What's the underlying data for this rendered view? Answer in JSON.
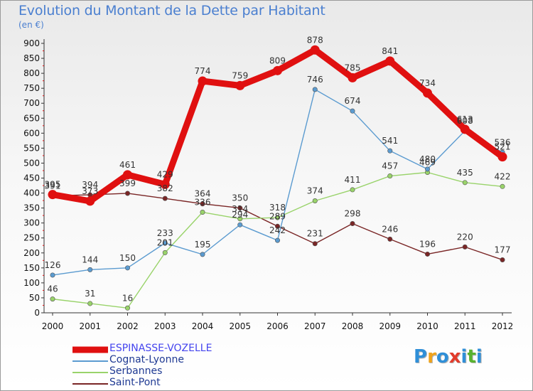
{
  "header": {
    "title": "Evolution du Montant de la Dette par Habitant",
    "subtitle": "(en €)"
  },
  "logo": {
    "letters": [
      "P",
      "r",
      "o",
      "x",
      "i",
      "t",
      "i"
    ],
    "colors": [
      "#2f8fd8",
      "#f0a31b",
      "#2f8fd8",
      "#e23b2b",
      "#2f8fd8",
      "#58b22f",
      "#2f8fd8"
    ]
  },
  "chart_data": {
    "type": "line",
    "title": "Evolution du Montant de la Dette par Habitant",
    "subtitle": "(en €)",
    "xlabel": "",
    "ylabel": "",
    "x": [
      "2000",
      "2001",
      "2002",
      "2003",
      "2004",
      "2005",
      "2006",
      "2007",
      "2008",
      "2009",
      "2010",
      "2011",
      "2012"
    ],
    "ylim": [
      0,
      900
    ],
    "yticks": [
      0,
      50,
      100,
      150,
      200,
      250,
      300,
      350,
      400,
      450,
      500,
      550,
      600,
      650,
      700,
      750,
      800,
      850,
      900
    ],
    "grid": false,
    "legend": "bottom-left",
    "series": [
      {
        "name": "ESPINASSE-VOZELLE",
        "color": "#e01010",
        "label_color": "#4444ee",
        "values": [
          395,
          373,
          461,
          429,
          774,
          759,
          809,
          878,
          785,
          841,
          734,
          613,
          521
        ],
        "labels": [
          "395",
          "373",
          "461",
          "429",
          "774",
          "759",
          "809",
          "878",
          "785",
          "841",
          "734",
          "613",
          "521"
        ],
        "bold": true
      },
      {
        "name": "Cognat-Lyonne",
        "color": "#5b9bd0",
        "label_color": "#1f3a93",
        "values": [
          126,
          144,
          150,
          233,
          195,
          294,
          242,
          746,
          674,
          541,
          480,
          608,
          536
        ],
        "labels": [
          "126",
          "144",
          "150",
          "233",
          "195",
          "294",
          "242",
          "746",
          "674",
          "541",
          "480",
          "608",
          "536"
        ],
        "bold": false
      },
      {
        "name": "Serbannes",
        "color": "#99d36a",
        "label_color": "#1f9a1f",
        "values": [
          46,
          31,
          16,
          201,
          336,
          314,
          318,
          374,
          411,
          457,
          469,
          435,
          422
        ],
        "labels": [
          "46",
          "31",
          "16",
          "201",
          "336",
          "314",
          "318",
          "374",
          "411",
          "457",
          "469",
          "435",
          "422"
        ],
        "bold": false
      },
      {
        "name": "Saint-Pont",
        "color": "#7a2626",
        "label_color": "#7a2626",
        "values": [
          391,
          394,
          399,
          382,
          364,
          350,
          289,
          231,
          298,
          246,
          196,
          220,
          177
        ],
        "labels": [
          "391",
          "394",
          "399",
          "382",
          "364",
          "350",
          "289",
          "231",
          "298",
          "246",
          "196",
          "220",
          "177"
        ],
        "bold": false
      }
    ]
  }
}
